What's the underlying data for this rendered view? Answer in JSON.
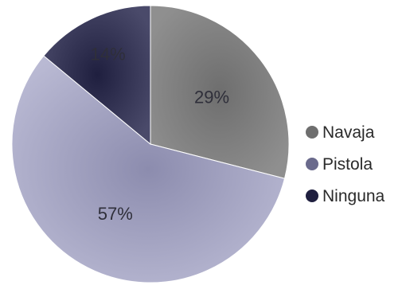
{
  "chart_data": {
    "type": "pie",
    "title": "",
    "legend_position": "right",
    "slices": [
      {
        "label": "Navaja",
        "value": 29,
        "value_text": "29%",
        "color": "#8f8f8f",
        "gradient_dark": "#6e6e6e"
      },
      {
        "label": "Pistola",
        "value": 57,
        "value_text": "57%",
        "color": "#b9b9d3",
        "gradient_dark": "#8c8cae"
      },
      {
        "label": "Ninguna",
        "value": 14,
        "value_text": "14%",
        "color": "#4a4a6a",
        "gradient_dark": "#1f1f3f"
      }
    ],
    "legend": [
      {
        "label": "Navaja",
        "color": "#6e6e6e"
      },
      {
        "label": "Pistola",
        "color": "#6a6a8c"
      },
      {
        "label": "Ninguna",
        "color": "#1f1f3f"
      }
    ]
  }
}
